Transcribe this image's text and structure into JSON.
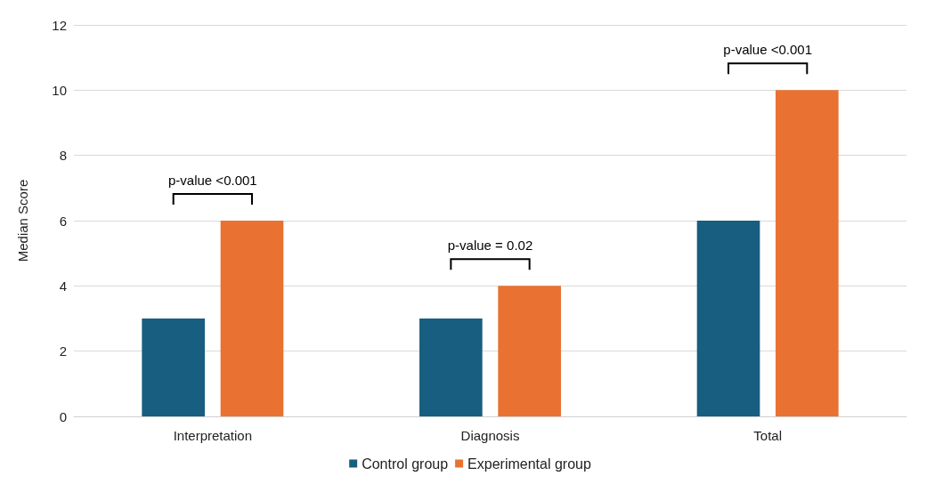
{
  "chart_data": {
    "type": "bar",
    "ylabel": "Median Score",
    "categories": [
      "Interpretation",
      "Diagnosis",
      "Total"
    ],
    "series": [
      {
        "name": "Control group",
        "color": "#175e80",
        "values": [
          3,
          3,
          6
        ]
      },
      {
        "name": "Experimental group",
        "color": "#e97132",
        "values": [
          6,
          4,
          10
        ]
      }
    ],
    "ylim": [
      0,
      12
    ],
    "yticks": [
      0,
      2,
      4,
      6,
      8,
      10,
      12
    ],
    "grid": "y",
    "legend": "bottom",
    "annotations": [
      "p-value <0.001",
      "p-value = 0.02",
      "p-value <0.001"
    ]
  }
}
